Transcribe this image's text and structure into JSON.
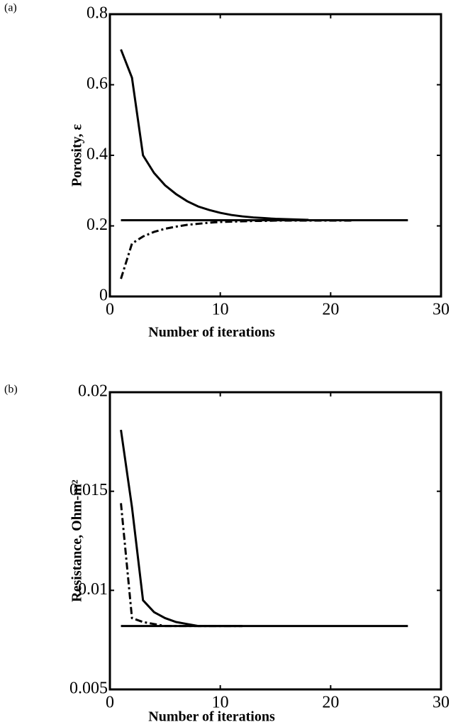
{
  "chart_data": [
    {
      "type": "line",
      "panel_label": "(a)",
      "xlabel": "Number of iterations",
      "ylabel": "Porosity, ε",
      "xlim": [
        0,
        30
      ],
      "ylim": [
        0,
        0.8
      ],
      "xticks": [
        0,
        10,
        20,
        30
      ],
      "yticks": [
        0,
        0.2,
        0.4,
        0.6,
        0.8
      ],
      "series": [
        {
          "color": "#000000",
          "line_style": "solid",
          "x": [
            1,
            27
          ],
          "values": [
            0.216,
            0.216
          ]
        },
        {
          "color": "#000000",
          "line_style": "solid",
          "x": [
            1,
            2,
            3,
            4,
            5,
            6,
            7,
            8,
            9,
            10,
            11,
            12,
            13,
            14,
            15,
            16,
            17,
            18
          ],
          "values": [
            0.7,
            0.62,
            0.4,
            0.35,
            0.315,
            0.29,
            0.27,
            0.255,
            0.245,
            0.237,
            0.231,
            0.227,
            0.224,
            0.222,
            0.22,
            0.219,
            0.218,
            0.217
          ]
        },
        {
          "color": "#000000",
          "line_style": "dashdot",
          "x": [
            1,
            2,
            3,
            4,
            5,
            6,
            7,
            8,
            9,
            10,
            11,
            12,
            13,
            14,
            15,
            22
          ],
          "values": [
            0.05,
            0.15,
            0.17,
            0.183,
            0.192,
            0.198,
            0.203,
            0.206,
            0.209,
            0.211,
            0.212,
            0.213,
            0.214,
            0.214,
            0.215,
            0.215
          ]
        }
      ]
    },
    {
      "type": "line",
      "panel_label": "(b)",
      "xlabel": "Number of iterations",
      "ylabel": "Resistance, Ohm-m²",
      "xlim": [
        0,
        30
      ],
      "ylim": [
        0.005,
        0.02
      ],
      "xticks": [
        0,
        10,
        20,
        30
      ],
      "yticks": [
        0.005,
        0.01,
        0.015,
        0.02
      ],
      "series": [
        {
          "color": "#000000",
          "line_style": "solid",
          "x": [
            1,
            27
          ],
          "values": [
            0.0082,
            0.0082
          ]
        },
        {
          "color": "#000000",
          "line_style": "solid",
          "x": [
            1,
            2,
            3,
            4,
            5,
            6,
            7,
            8,
            9,
            12
          ],
          "values": [
            0.0181,
            0.0142,
            0.0095,
            0.0089,
            0.0086,
            0.0084,
            0.0083,
            0.0082,
            0.0082,
            0.0082
          ]
        },
        {
          "color": "#000000",
          "line_style": "dashdot",
          "x": [
            1,
            2,
            3,
            4,
            5,
            12
          ],
          "values": [
            0.0144,
            0.0086,
            0.0084,
            0.0083,
            0.0082,
            0.0082
          ]
        }
      ]
    }
  ]
}
